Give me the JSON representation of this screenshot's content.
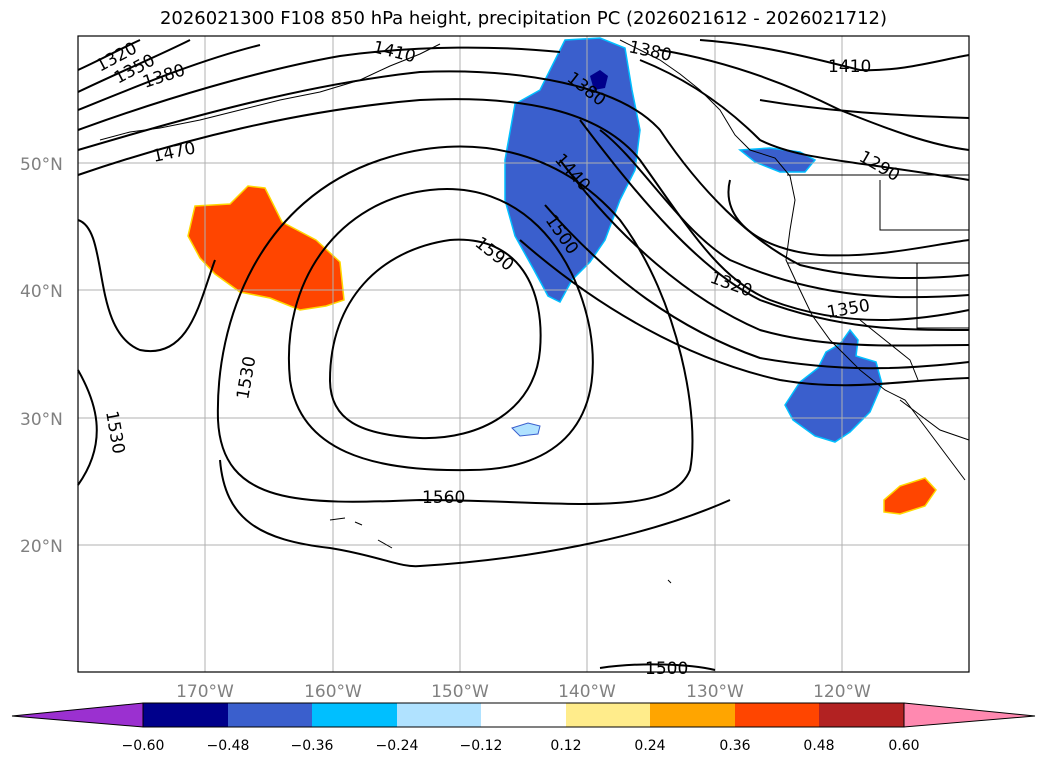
{
  "title": "2026021300 F108 850 hPa height, precipitation PC (2026021612 - 2026021712)",
  "latitude_labels": [
    "50°N",
    "40°N",
    "30°N",
    "20°N"
  ],
  "longitude_labels": [
    "170°W",
    "160°W",
    "150°W",
    "140°W",
    "130°W",
    "120°W"
  ],
  "contour_labels": [
    "1320",
    "1350",
    "1380",
    "1410",
    "1470",
    "1380",
    "1380",
    "1410",
    "1440",
    "1500",
    "1590",
    "1530",
    "1530",
    "1560",
    "1320",
    "1350",
    "1290",
    "1500"
  ],
  "colorbar": {
    "ticks": [
      "−0.60",
      "−0.48",
      "−0.36",
      "−0.24",
      "−0.12",
      "0.12",
      "0.24",
      "0.36",
      "0.48",
      "0.60"
    ],
    "colors": [
      "#9b30d0",
      "#00008b",
      "#3a5fcd",
      "#00bfff",
      "#b0e2ff",
      "#ffffff",
      "#ffec8b",
      "#ffa500",
      "#ff4500",
      "#b22222",
      "#ff89b0"
    ]
  },
  "colors": {
    "positive_anomaly": "#ff4500",
    "negative_anomaly": "#3a5fcd",
    "gridline": "#b0b0b0",
    "label_gray": "#808080"
  }
}
